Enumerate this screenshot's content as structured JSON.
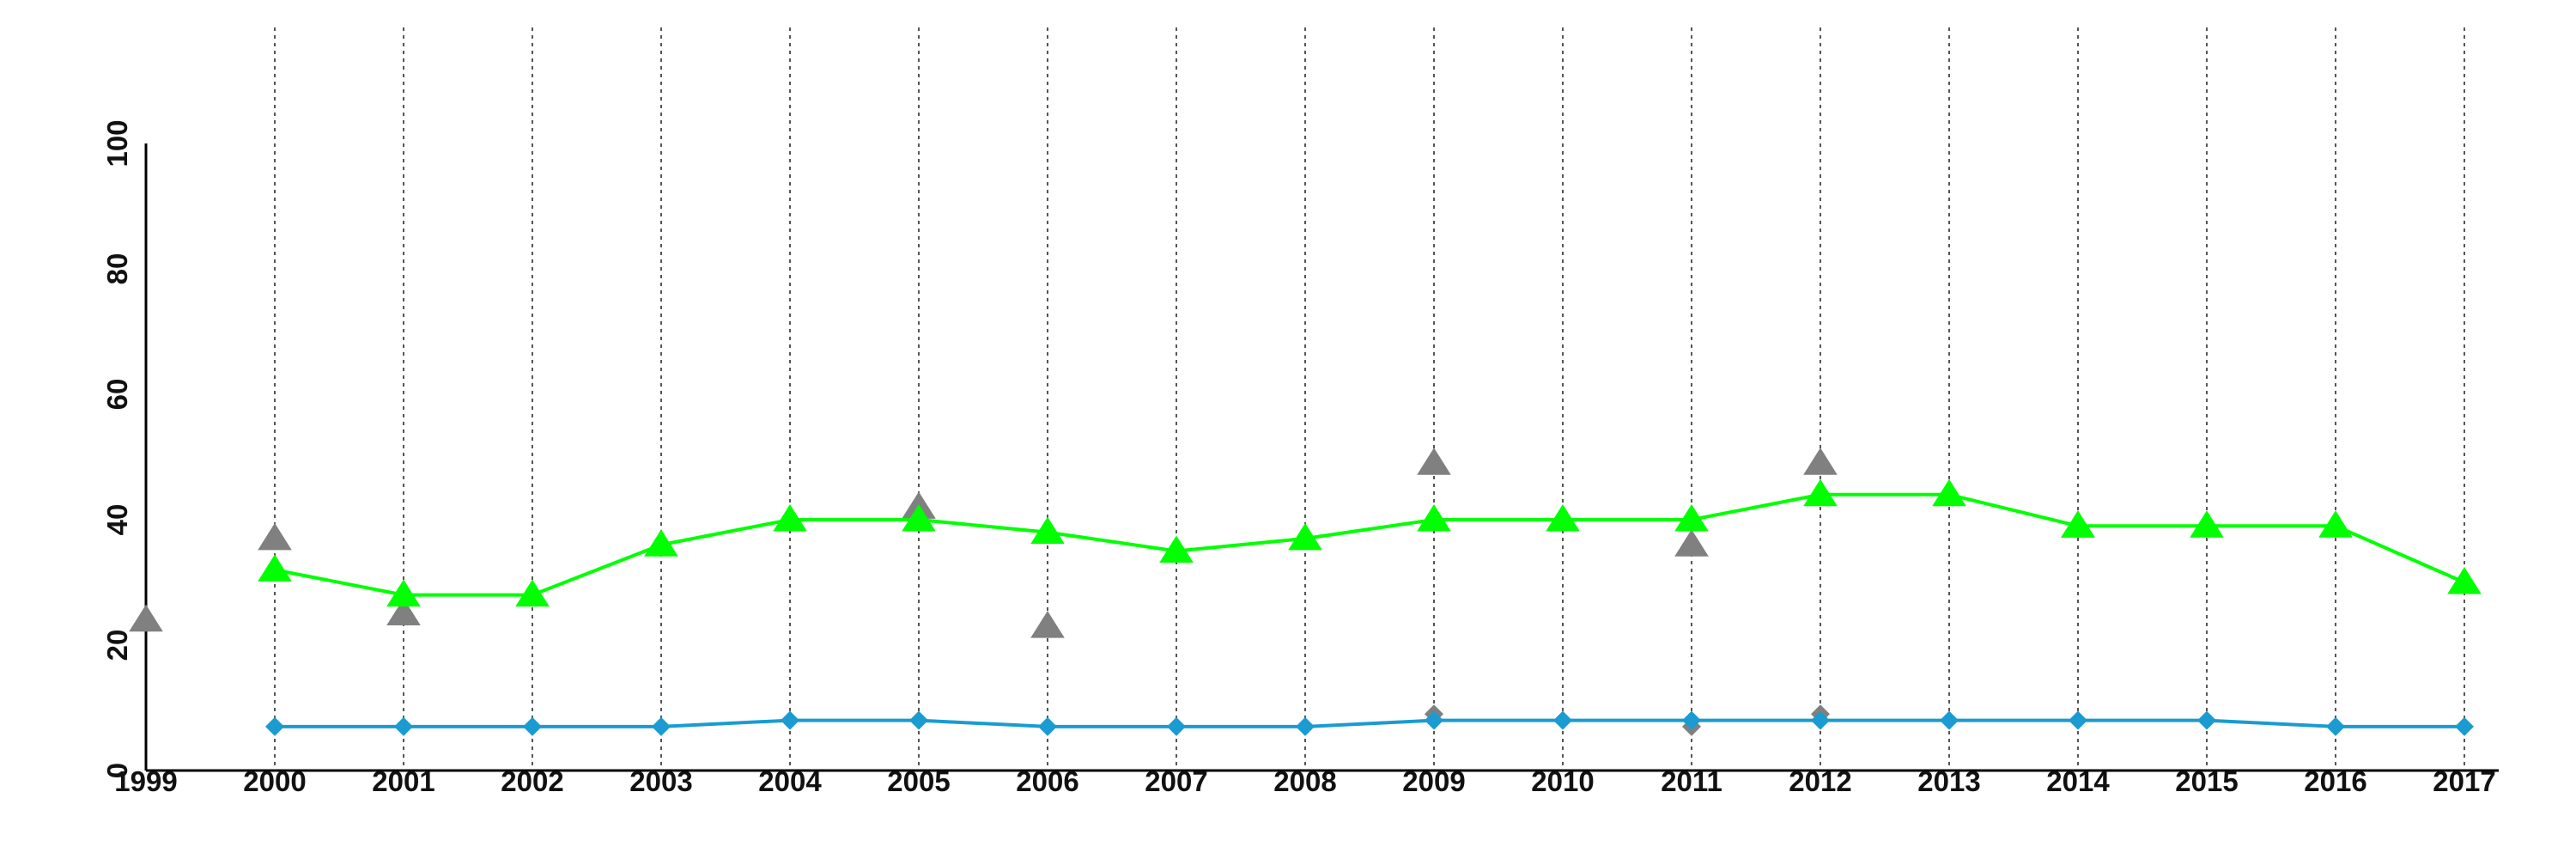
{
  "colors": {
    "green_series": "#00ff00",
    "blue_series": "#1a9bd1",
    "gray_points": "#808080",
    "axis": "#000000",
    "gridline": "#555555"
  },
  "chart_data": {
    "type": "line",
    "title": "",
    "xlabel": "",
    "ylabel": "",
    "x": [
      1999,
      2000,
      2001,
      2002,
      2003,
      2004,
      2005,
      2006,
      2007,
      2008,
      2009,
      2010,
      2011,
      2012,
      2013,
      2014,
      2015,
      2016,
      2017
    ],
    "x_tick_labels": [
      "1999",
      "2000",
      "2001",
      "2002",
      "2003",
      "2004",
      "2005",
      "2006",
      "2007",
      "2008",
      "2009",
      "2010",
      "2011",
      "2012",
      "2013",
      "2014",
      "2015",
      "2016",
      "2017"
    ],
    "y_tick_labels": [
      "0",
      "20",
      "40",
      "60",
      "80",
      "100"
    ],
    "y_ticks": [
      0,
      20,
      40,
      60,
      80,
      100
    ],
    "xlim": [
      1999,
      2017
    ],
    "ylim": [
      0,
      100
    ],
    "grid": "vertical dotted lines at each year",
    "legend": "none",
    "series": [
      {
        "marker": "triangle",
        "style": "line",
        "color_key": "green_series",
        "points": [
          [
            2000,
            32
          ],
          [
            2001,
            28
          ],
          [
            2002,
            28
          ],
          [
            2003,
            36
          ],
          [
            2004,
            40
          ],
          [
            2005,
            40
          ],
          [
            2006,
            38
          ],
          [
            2007,
            35
          ],
          [
            2008,
            37
          ],
          [
            2009,
            40
          ],
          [
            2010,
            40
          ],
          [
            2011,
            40
          ],
          [
            2012,
            44
          ],
          [
            2013,
            44
          ],
          [
            2014,
            39
          ],
          [
            2015,
            39
          ],
          [
            2016,
            39
          ],
          [
            2017,
            30
          ]
        ]
      },
      {
        "marker": "diamond",
        "style": "line",
        "color_key": "blue_series",
        "points": [
          [
            2000,
            7
          ],
          [
            2001,
            7
          ],
          [
            2002,
            7
          ],
          [
            2003,
            7
          ],
          [
            2004,
            8
          ],
          [
            2005,
            8
          ],
          [
            2006,
            7
          ],
          [
            2007,
            7
          ],
          [
            2008,
            7
          ],
          [
            2009,
            8
          ],
          [
            2010,
            8
          ],
          [
            2011,
            8
          ],
          [
            2012,
            8
          ],
          [
            2013,
            8
          ],
          [
            2014,
            8
          ],
          [
            2015,
            8
          ],
          [
            2016,
            7
          ],
          [
            2017,
            7
          ]
        ]
      },
      {
        "marker": "triangle",
        "style": "points",
        "color_key": "gray_points",
        "points": [
          [
            1999,
            24
          ],
          [
            2000,
            37
          ],
          [
            2001,
            25
          ],
          [
            2005,
            42
          ],
          [
            2006,
            23
          ],
          [
            2009,
            49
          ],
          [
            2011,
            36
          ],
          [
            2012,
            49
          ],
          [
            2014,
            39
          ]
        ]
      },
      {
        "marker": "diamond",
        "style": "points",
        "color_key": "gray_points",
        "points": [
          [
            2009,
            9
          ],
          [
            2011,
            7
          ],
          [
            2012,
            9
          ]
        ]
      }
    ]
  }
}
